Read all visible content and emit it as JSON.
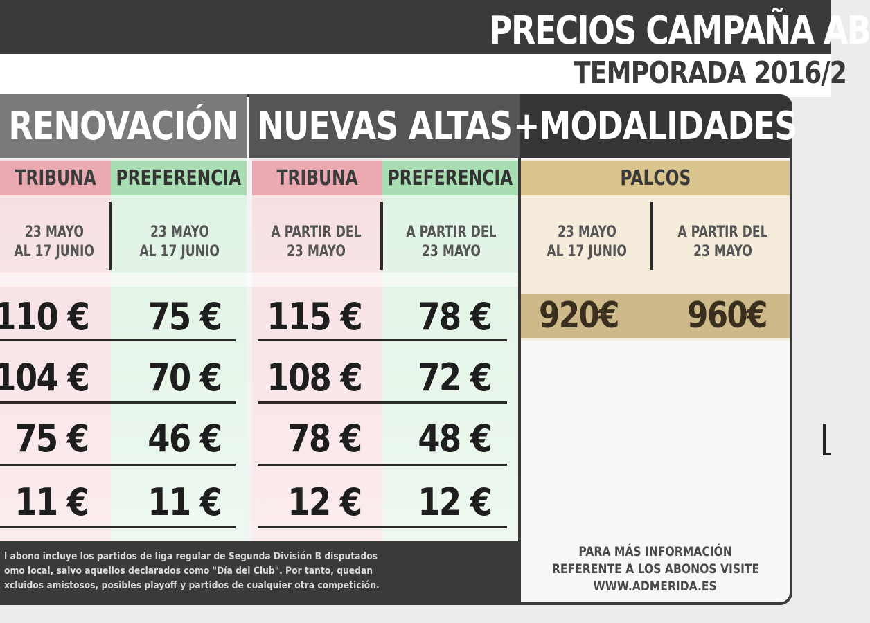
{
  "title": "PRECIOS CAMPAÑA AB",
  "subtitle": "TEMPORADA 2016/2",
  "sections": {
    "renovacion": "RENOVACIÓN",
    "nuevas_altas": "NUEVAS ALTAS",
    "modalidades": "+MODALIDADES"
  },
  "columns": [
    {
      "category": "TRIBUNA",
      "dates": [
        "23 MAYO",
        "AL 17 JUNIO"
      ],
      "prices": [
        "110 €",
        "104 €",
        "75 €",
        "11 €"
      ]
    },
    {
      "category": "PREFERENCIA",
      "dates": [
        "23 MAYO",
        "AL 17 JUNIO"
      ],
      "prices": [
        "75 €",
        "70 €",
        "46 €",
        "11 €"
      ]
    },
    {
      "category": "TRIBUNA",
      "dates": [
        "A PARTIR DEL",
        "23 MAYO"
      ],
      "prices": [
        "115 €",
        "108 €",
        "78 €",
        "12 €"
      ]
    },
    {
      "category": "PREFERENCIA",
      "dates": [
        "A PARTIR DEL",
        "23 MAYO"
      ],
      "prices": [
        "78 €",
        "72 €",
        "48 €",
        "12 €"
      ]
    }
  ],
  "palcos": {
    "label": "PALCOS",
    "dates_1": [
      "23 MAYO",
      "AL 17 JUNIO"
    ],
    "dates_2": [
      "A PARTIR DEL",
      "23 MAYO"
    ],
    "price_1": "920€",
    "price_2": "960€"
  },
  "fine_print": [
    "l abono incluye los partidos de liga regular de Segunda División B disputados",
    "omo local, salvo aquellos declarados como \"Día del Club\". Por tanto, quedan",
    "xcluidos amistosos, posibles playoff y partidos de cualquier otra competición."
  ],
  "info": [
    "PARA MÁS INFORMACIÓN",
    "REFERENTE A LOS ABONOS VISITE",
    "WWW.ADMERIDA.ES"
  ],
  "colors": {
    "dark": "#3a3a3a",
    "tribuna": "#eaa9b0",
    "preferencia": "#a9ddb3",
    "palcos": "#dac48e"
  }
}
